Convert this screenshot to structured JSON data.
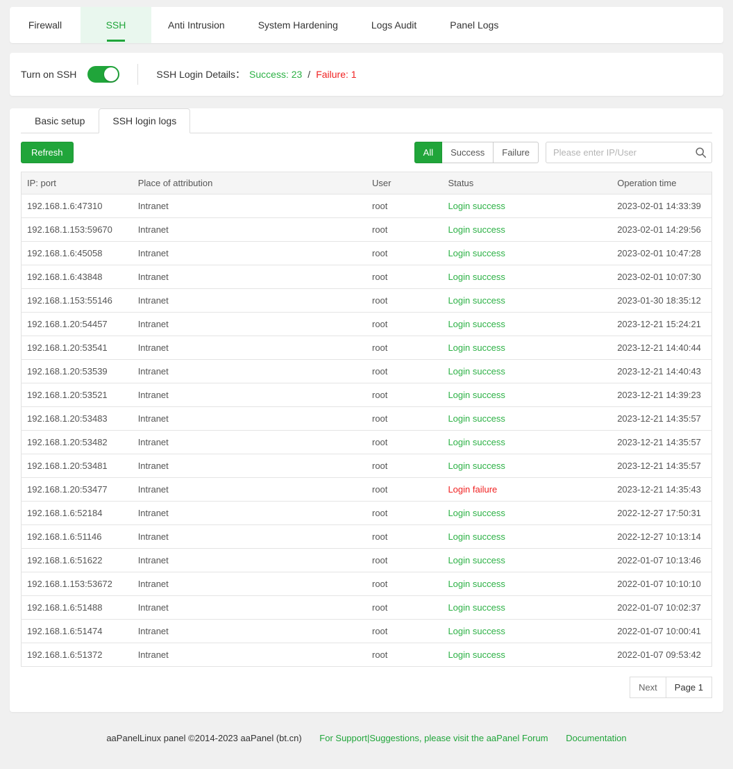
{
  "colors": {
    "accent_green": "#20a53a",
    "success_text": "#2cb145",
    "failure_text": "#f02222",
    "active_tab_bg": "#e9f7ee"
  },
  "top_tabs": [
    {
      "label": "Firewall",
      "active": false
    },
    {
      "label": "SSH",
      "active": true
    },
    {
      "label": "Anti Intrusion",
      "active": false
    },
    {
      "label": "System Hardening",
      "active": false
    },
    {
      "label": "Logs Audit",
      "active": false
    },
    {
      "label": "Panel Logs",
      "active": false
    }
  ],
  "ssh_panel": {
    "toggle_label": "Turn on SSH",
    "toggle_state": "on",
    "details_label": "SSH Login Details：",
    "success_text": "Success: 23",
    "separator": "/",
    "failure_text": "Failure: 1"
  },
  "sub_tabs": [
    {
      "label": "Basic setup",
      "active": false
    },
    {
      "label": "SSH login logs",
      "active": true
    }
  ],
  "toolbar": {
    "refresh_label": "Refresh",
    "filters": [
      {
        "label": "All",
        "active": true
      },
      {
        "label": "Success",
        "active": false
      },
      {
        "label": "Failure",
        "active": false
      }
    ],
    "search_placeholder": "Please enter IP/User",
    "search_value": ""
  },
  "table": {
    "columns": [
      "IP: port",
      "Place of attribution",
      "User",
      "Status",
      "Operation time"
    ],
    "rows": [
      {
        "ip": "192.168.1.6:47310",
        "place": "Intranet",
        "user": "root",
        "status": "Login success",
        "time": "2023-02-01 14:33:39"
      },
      {
        "ip": "192.168.1.153:59670",
        "place": "Intranet",
        "user": "root",
        "status": "Login success",
        "time": "2023-02-01 14:29:56"
      },
      {
        "ip": "192.168.1.6:45058",
        "place": "Intranet",
        "user": "root",
        "status": "Login success",
        "time": "2023-02-01 10:47:28"
      },
      {
        "ip": "192.168.1.6:43848",
        "place": "Intranet",
        "user": "root",
        "status": "Login success",
        "time": "2023-02-01 10:07:30"
      },
      {
        "ip": "192.168.1.153:55146",
        "place": "Intranet",
        "user": "root",
        "status": "Login success",
        "time": "2023-01-30 18:35:12"
      },
      {
        "ip": "192.168.1.20:54457",
        "place": "Intranet",
        "user": "root",
        "status": "Login success",
        "time": "2023-12-21 15:24:21"
      },
      {
        "ip": "192.168.1.20:53541",
        "place": "Intranet",
        "user": "root",
        "status": "Login success",
        "time": "2023-12-21 14:40:44"
      },
      {
        "ip": "192.168.1.20:53539",
        "place": "Intranet",
        "user": "root",
        "status": "Login success",
        "time": "2023-12-21 14:40:43"
      },
      {
        "ip": "192.168.1.20:53521",
        "place": "Intranet",
        "user": "root",
        "status": "Login success",
        "time": "2023-12-21 14:39:23"
      },
      {
        "ip": "192.168.1.20:53483",
        "place": "Intranet",
        "user": "root",
        "status": "Login success",
        "time": "2023-12-21 14:35:57"
      },
      {
        "ip": "192.168.1.20:53482",
        "place": "Intranet",
        "user": "root",
        "status": "Login success",
        "time": "2023-12-21 14:35:57"
      },
      {
        "ip": "192.168.1.20:53481",
        "place": "Intranet",
        "user": "root",
        "status": "Login success",
        "time": "2023-12-21 14:35:57"
      },
      {
        "ip": "192.168.1.20:53477",
        "place": "Intranet",
        "user": "root",
        "status": "Login failure",
        "time": "2023-12-21 14:35:43"
      },
      {
        "ip": "192.168.1.6:52184",
        "place": "Intranet",
        "user": "root",
        "status": "Login success",
        "time": "2022-12-27 17:50:31"
      },
      {
        "ip": "192.168.1.6:51146",
        "place": "Intranet",
        "user": "root",
        "status": "Login success",
        "time": "2022-12-27 10:13:14"
      },
      {
        "ip": "192.168.1.6:51622",
        "place": "Intranet",
        "user": "root",
        "status": "Login success",
        "time": "2022-01-07 10:13:46"
      },
      {
        "ip": "192.168.1.153:53672",
        "place": "Intranet",
        "user": "root",
        "status": "Login success",
        "time": "2022-01-07 10:10:10"
      },
      {
        "ip": "192.168.1.6:51488",
        "place": "Intranet",
        "user": "root",
        "status": "Login success",
        "time": "2022-01-07 10:02:37"
      },
      {
        "ip": "192.168.1.6:51474",
        "place": "Intranet",
        "user": "root",
        "status": "Login success",
        "time": "2022-01-07 10:00:41"
      },
      {
        "ip": "192.168.1.6:51372",
        "place": "Intranet",
        "user": "root",
        "status": "Login success",
        "time": "2022-01-07 09:53:42"
      }
    ]
  },
  "pagination": {
    "next_label": "Next",
    "page_label": "Page 1"
  },
  "footer": {
    "copyright": "aaPanelLinux panel ©2014-2023 aaPanel (bt.cn)",
    "support_link": "For Support|Suggestions, please visit the aaPanel Forum",
    "docs_link": "Documentation"
  }
}
